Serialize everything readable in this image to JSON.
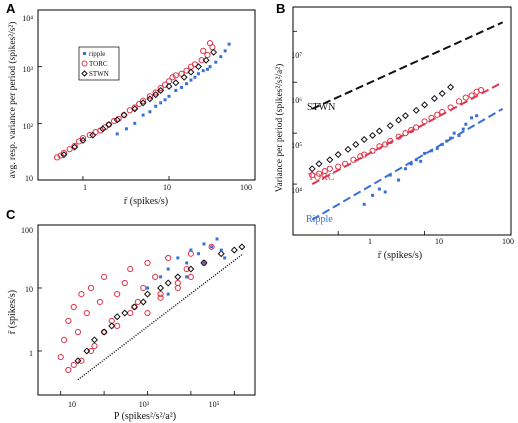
{
  "figure": {
    "panels": [
      {
        "letter": "A",
        "xlabel": "r̄ (spikes/s)",
        "ylabel": "avg. resp. variance per period (spikes²/s²)",
        "xticks": [
          "1",
          "10",
          "100"
        ],
        "yticks": [
          "10",
          "10²",
          "10³",
          "10⁴"
        ],
        "legend": [
          "ripple",
          "TORC",
          "STWN"
        ]
      },
      {
        "letter": "B",
        "xlabel": "r̄ (spikes/s)",
        "ylabel": "Variance per period (spikes²/s²/a²)",
        "xticks": [
          "1",
          "10",
          "100"
        ],
        "yticks": [
          "10⁴",
          "10⁵",
          "10⁶",
          "10⁷"
        ],
        "line_labels": [
          "STWN",
          "TORC",
          "Ripple"
        ]
      },
      {
        "letter": "C",
        "xlabel": "P (spikes²/s²/a²)",
        "ylabel": "r̄ (spikes/s)",
        "xticks": [
          "10",
          "10³",
          "10⁵"
        ],
        "yticks": [
          "1",
          "10",
          "100"
        ]
      }
    ]
  },
  "colors": {
    "ripple": "#3a6fd8",
    "torc": "#e0354a",
    "stwn": "#111111"
  },
  "chart_data": [
    {
      "type": "scatter",
      "panel": "A",
      "xlabel": "r̄ (spikes/s)",
      "ylabel": "avg. resp. variance per period (spikes²/s²)",
      "xscale": "log",
      "yscale": "log",
      "xlim": [
        0.3,
        100
      ],
      "ylim": [
        10,
        10000
      ],
      "legend_position": "top-left",
      "series": [
        {
          "name": "ripple",
          "marker": "filled-square",
          "color": "#3a6fd8",
          "x": [
            2.5,
            3.2,
            4,
            5,
            6,
            7,
            8,
            9,
            10,
            12,
            14,
            16,
            18,
            20,
            22,
            25,
            28,
            30,
            35,
            40,
            45,
            50
          ],
          "y": [
            65,
            80,
            100,
            140,
            160,
            200,
            230,
            260,
            300,
            380,
            430,
            500,
            580,
            650,
            750,
            850,
            900,
            1000,
            1200,
            1500,
            1900,
            2500
          ]
        },
        {
          "name": "TORC",
          "marker": "open-circle",
          "color": "#e0354a",
          "x": [
            0.5,
            0.55,
            0.6,
            0.7,
            0.8,
            0.9,
            1,
            1.2,
            1.4,
            1.6,
            1.8,
            2,
            2.3,
            2.6,
            3,
            3.5,
            4,
            4.5,
            5,
            6,
            7,
            8,
            9,
            10,
            11,
            12,
            14,
            16,
            18,
            20,
            24,
            28,
            32,
            30,
            25
          ],
          "y": [
            25,
            27,
            30,
            35,
            40,
            48,
            55,
            62,
            70,
            75,
            85,
            95,
            110,
            120,
            140,
            170,
            190,
            220,
            250,
            300,
            350,
            420,
            480,
            550,
            650,
            700,
            750,
            850,
            1000,
            1100,
            1300,
            1600,
            2200,
            2600,
            1900
          ]
        },
        {
          "name": "STWN",
          "marker": "open-diamond",
          "color": "#111111",
          "x": [
            0.6,
            0.8,
            1,
            1.3,
            1.7,
            2,
            2.5,
            3,
            4,
            5,
            6,
            7,
            8,
            10,
            12,
            15,
            18,
            22,
            27,
            33
          ],
          "y": [
            28,
            38,
            50,
            62,
            80,
            95,
            115,
            140,
            180,
            230,
            270,
            320,
            380,
            450,
            520,
            650,
            800,
            1000,
            1300,
            1800
          ]
        }
      ]
    },
    {
      "type": "scatter",
      "panel": "B",
      "xlabel": "r̄ (spikes/s)",
      "ylabel": "Variance per period (spikes²/s²/a²)",
      "xscale": "log",
      "yscale": "log",
      "xlim": [
        0.3,
        100
      ],
      "ylim": [
        1000,
        30000000
      ],
      "series": [
        {
          "name": "Ripple",
          "marker": "filled-square",
          "color": "#3a6fd8",
          "x": [
            2,
            2.5,
            3,
            3.5,
            4,
            5,
            6,
            7,
            8,
            9,
            10,
            12,
            14,
            16,
            18,
            20,
            22,
            25,
            28,
            30,
            35,
            40
          ],
          "y": [
            4000,
            6000,
            8000,
            7000,
            15000,
            12000,
            20000,
            25000,
            30000,
            28000,
            40000,
            45000,
            50000,
            60000,
            70000,
            80000,
            100000,
            90000,
            120000,
            150000,
            200000,
            220000
          ],
          "fit_line": {
            "x": [
              0.5,
              80
            ],
            "y": [
              2000,
              300000
            ]
          }
        },
        {
          "name": "TORC",
          "marker": "open-circle",
          "color": "#e0354a",
          "x": [
            0.5,
            0.6,
            0.7,
            0.8,
            1,
            1.2,
            1.5,
            1.8,
            2,
            2.5,
            3,
            3.5,
            4,
            5,
            6,
            7,
            8,
            10,
            12,
            14,
            16,
            20,
            25,
            30,
            35,
            40,
            45
          ],
          "y": [
            15000,
            16000,
            18000,
            20000,
            22000,
            25000,
            30000,
            35000,
            38000,
            45000,
            55000,
            60000,
            70000,
            85000,
            100000,
            115000,
            130000,
            170000,
            200000,
            230000,
            260000,
            320000,
            420000,
            500000,
            550000,
            650000,
            700000
          ],
          "fit_line": {
            "x": [
              0.5,
              80
            ],
            "y": [
              10000,
              1000000
            ]
          }
        },
        {
          "name": "STWN",
          "marker": "open-diamond",
          "color": "#111111",
          "x": [
            0.5,
            0.6,
            0.8,
            1,
            1.3,
            1.6,
            2,
            2.5,
            3,
            4,
            5,
            6,
            8,
            10,
            13,
            16,
            20
          ],
          "y": [
            20000,
            25000,
            30000,
            38000,
            48000,
            60000,
            75000,
            90000,
            110000,
            140000,
            180000,
            220000,
            280000,
            360000,
            480000,
            600000,
            800000
          ],
          "fit_line": {
            "x": [
              0.5,
              80
            ],
            "y": [
              300000,
              15000000
            ]
          }
        }
      ]
    },
    {
      "type": "scatter",
      "panel": "C",
      "xlabel": "P (spikes²/s²/a²)",
      "ylabel": "r̄ (spikes/s)",
      "xscale": "log",
      "yscale": "log",
      "xlim": [
        3,
        300000
      ],
      "ylim": [
        0.2,
        100
      ],
      "series": [
        {
          "name": "ripple",
          "marker": "filled-square",
          "color": "#3a6fd8",
          "x": [
            1000,
            2000,
            3000,
            5000,
            8000,
            10000,
            15000,
            20000,
            30000,
            40000,
            50000,
            60000,
            3000,
            8000,
            20000
          ],
          "y": [
            10,
            15,
            20,
            30,
            25,
            40,
            35,
            50,
            45,
            60,
            40,
            30,
            8,
            15,
            25
          ]
        },
        {
          "name": "TORC",
          "marker": "open-circle",
          "color": "#e0354a",
          "x": [
            10,
            12,
            15,
            20,
            25,
            30,
            40,
            50,
            60,
            80,
            100,
            150,
            200,
            300,
            400,
            500,
            800,
            1000,
            1500,
            2000,
            3000,
            5000,
            8000,
            10000,
            20000,
            30000,
            15,
            20,
            30,
            50,
            100,
            200,
            400,
            600,
            1000,
            2000,
            5000,
            10000
          ],
          "y": [
            0.8,
            1.5,
            3,
            5,
            2,
            8,
            4,
            10,
            1.2,
            6,
            15,
            3,
            8,
            12,
            20,
            5,
            10,
            25,
            15,
            8,
            30,
            12,
            20,
            35,
            25,
            45,
            0.5,
            0.6,
            0.7,
            1,
            2,
            2.5,
            4,
            6,
            4,
            7,
            10,
            15
          ]
        },
        {
          "name": "STWN",
          "marker": "open-diamond",
          "color": "#111111",
          "x": [
            25,
            40,
            60,
            100,
            150,
            200,
            300,
            500,
            800,
            1000,
            2000,
            3000,
            5000,
            10000,
            20000,
            50000,
            100000,
            150000
          ],
          "y": [
            0.7,
            1,
            1.5,
            2,
            2.5,
            3.5,
            4,
            5,
            6,
            8,
            10,
            12,
            15,
            20,
            25,
            35,
            40,
            45
          ]
        }
      ],
      "reference_line": {
        "x": [
          25,
          160000
        ],
        "y": [
          0.35,
          35
        ]
      }
    }
  ]
}
